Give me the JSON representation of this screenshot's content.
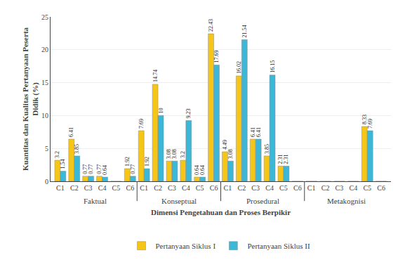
{
  "chart_data": {
    "type": "bar",
    "categories": [
      "C1",
      "C2",
      "C3",
      "C4",
      "C5",
      "C6",
      "C1",
      "C2",
      "C3",
      "C4",
      "C5",
      "C6",
      "C1",
      "C2",
      "C3",
      "C4",
      "C5",
      "C6",
      "C1",
      "C2",
      "C3",
      "C4",
      "C5",
      "C6"
    ],
    "annotations": [
      "Faktual",
      "Konseptual",
      "Prosedural",
      "Metakognisi"
    ],
    "series": [
      {
        "name": "Pertanyaan Siklus I",
        "color": "#F5C518",
        "values": [
          3.2,
          6.41,
          0.77,
          0.77,
          0.0,
          1.92,
          7.69,
          14.74,
          3.08,
          3.2,
          0.64,
          22.43,
          4.49,
          16.02,
          6.41,
          3.85,
          2.31,
          0.0,
          0.0,
          0.0,
          0.0,
          0.0,
          8.33,
          0.0
        ],
        "value_labels": [
          "3.2",
          "6.41",
          "0.77",
          "0.77",
          null,
          "1.92",
          "7.69",
          "14.74",
          "3.08",
          "3.2",
          "0.64",
          "22.43",
          "4.49",
          "16.02",
          "6.41",
          "3.85",
          "2.31",
          null,
          null,
          null,
          null,
          null,
          "8.33",
          null
        ]
      },
      {
        "name": "Pertanyaan Siklus II",
        "color": "#3BB8D8",
        "values": [
          1.54,
          3.85,
          0.77,
          0.64,
          0.0,
          0.77,
          1.92,
          10.0,
          3.08,
          9.23,
          0.64,
          17.69,
          3.08,
          21.54,
          6.41,
          16.15,
          2.31,
          0.0,
          0.0,
          0.0,
          0.0,
          0.0,
          7.69,
          0.0
        ],
        "value_labels": [
          "1.54",
          "3.85",
          "0.77",
          "0.64",
          null,
          "0.77",
          "1.92",
          "10",
          "3.08",
          "9.23",
          "0.64",
          "17.69",
          "3.08",
          "21.54",
          "6.41",
          "16.15",
          "2.31",
          null,
          null,
          null,
          null,
          null,
          "7.69",
          null
        ]
      }
    ],
    "xlabel": "Dimensi Pengetahuan dan Proses Berpikir",
    "ylabel": "Kuantitas dan Kualitas Pertanyaan Peserta\nDidik (%)",
    "ylim": [
      0,
      25
    ],
    "yticks": [
      0,
      5,
      10,
      15,
      20,
      25
    ],
    "grid": true,
    "legend": "bottom",
    "data_labels": true
  }
}
